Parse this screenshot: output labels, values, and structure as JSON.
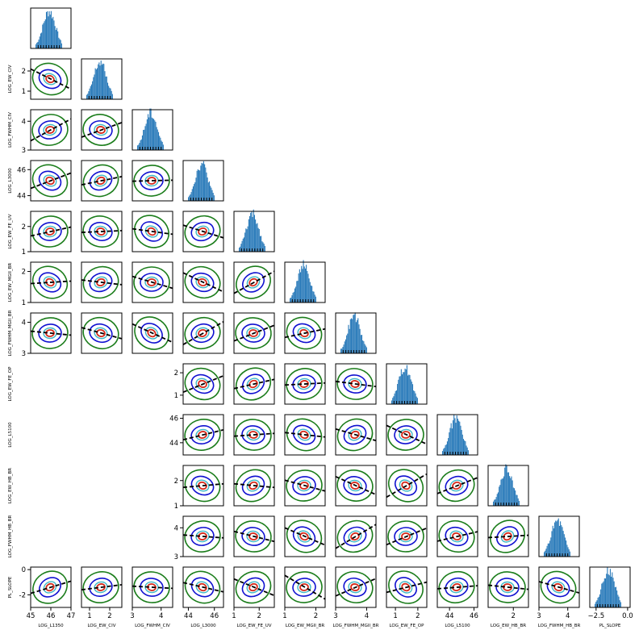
{
  "chart_data": {
    "type": "corner",
    "variables": [
      "LOG_L1350",
      "LOG_EW_CIV",
      "LOG_FWHM_CIV",
      "LOG_L3000",
      "LOG_EW_FE_UV",
      "LOG_EW_MGII_BR",
      "LOG_FWHM_MGII_BR",
      "LOG_EW_FE_OP",
      "LOG_L5100",
      "LOG_EW_HB_BR",
      "LOG_FWHM_HB_BR",
      "PL_SLOPE"
    ],
    "ranges": [
      [
        45,
        47
      ],
      [
        0.6,
        2.6
      ],
      [
        3,
        4.4
      ],
      [
        43.6,
        46.7
      ],
      [
        1,
        2.6
      ],
      [
        1,
        2.3
      ],
      [
        3,
        4.3
      ],
      [
        0.6,
        2.4
      ],
      [
        43,
        46.3
      ],
      [
        1,
        2.6
      ],
      [
        3,
        4.4
      ],
      [
        -3,
        0.2
      ]
    ],
    "ticks": [
      [
        45,
        46,
        47
      ],
      [
        1,
        2
      ],
      [
        3,
        4
      ],
      [
        44,
        46
      ],
      [
        1,
        2
      ],
      [
        1,
        2
      ],
      [
        3,
        4
      ],
      [
        1,
        2
      ],
      [
        44,
        46
      ],
      [
        1,
        2
      ],
      [
        3,
        4
      ],
      [
        -2,
        0
      ]
    ],
    "bottom_ticks": [
      [
        45,
        46,
        47
      ],
      [
        1,
        2
      ],
      [
        3,
        4
      ],
      [
        44,
        46
      ],
      [
        1,
        2
      ],
      [
        1,
        2
      ],
      [
        3,
        4
      ],
      [
        1,
        2
      ],
      [
        44,
        46
      ],
      [
        2
      ],
      [
        3,
        4
      ],
      [
        -2.5,
        0
      ]
    ],
    "bottom_tick_labels": [
      [
        "45",
        "46",
        "47"
      ],
      [
        "1",
        "2"
      ],
      [
        "3",
        "4"
      ],
      [
        "44",
        "46"
      ],
      [
        "1",
        "2"
      ],
      [
        "1",
        "2"
      ],
      [
        "3",
        "4"
      ],
      [
        "1",
        "2"
      ],
      [
        "44",
        "46"
      ],
      [
        "2"
      ],
      [
        "3",
        "4"
      ],
      [
        "−2.5",
        "0.0"
      ]
    ],
    "missing_pairs": [
      [
        7,
        0
      ],
      [
        7,
        1
      ],
      [
        7,
        2
      ],
      [
        8,
        0
      ],
      [
        8,
        1
      ],
      [
        8,
        2
      ],
      [
        9,
        0
      ],
      [
        9,
        1
      ],
      [
        9,
        2
      ],
      [
        10,
        0
      ],
      [
        10,
        1
      ],
      [
        10,
        2
      ]
    ],
    "series_colors": {
      "histogram": "#2b7bba",
      "contour_outer": "#1b7d1b",
      "contour_mid": "#1010d0",
      "contour_inner": "#3fb8c8",
      "contour_core": "#d62a1a",
      "trend": "#000000"
    }
  }
}
